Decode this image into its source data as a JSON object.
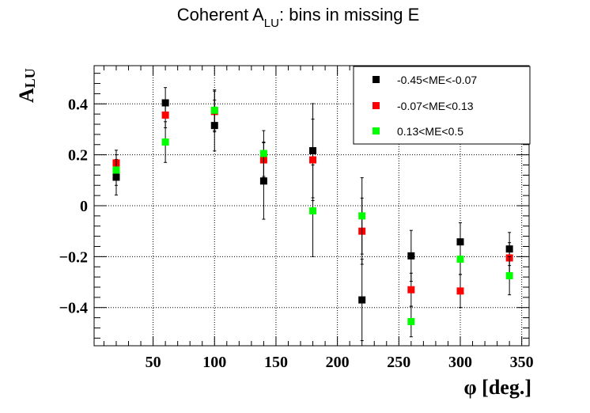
{
  "chart_data": {
    "type": "scatter",
    "title_main": "Coherent A",
    "title_sub": "LU",
    "title_rest": ": bins in missing E",
    "xlabel": "φ [deg.]",
    "ylabel_main": "A",
    "ylabel_sub": "LU",
    "xlim": [
      2,
      356
    ],
    "ylim": [
      -0.55,
      0.55
    ],
    "x_ticks": [
      50,
      100,
      150,
      200,
      250,
      300,
      350
    ],
    "y_ticks": [
      0.4,
      0.2,
      0,
      -0.2,
      -0.4
    ],
    "y_tick_labels": [
      "0.4",
      "0.2",
      "0",
      "−0.2",
      "−0.4"
    ],
    "grid": true,
    "legend_position": "top-right",
    "series": [
      {
        "name": "-0.45<ME<-0.07",
        "color": "#000000",
        "x": [
          20,
          60,
          100,
          140,
          180,
          220,
          260,
          300,
          340
        ],
        "y": [
          0.112,
          0.404,
          0.315,
          0.097,
          0.216,
          -0.37,
          -0.197,
          -0.142,
          -0.17
        ],
        "err": [
          0.07,
          0.06,
          0.1,
          0.15,
          0.185,
          0.16,
          0.1,
          0.075,
          0.065
        ]
      },
      {
        "name": "-0.07<ME<0.13",
        "color": "#ff0000",
        "x": [
          20,
          60,
          100,
          140,
          180,
          220,
          260,
          300,
          340
        ],
        "y": [
          0.168,
          0.356,
          0.37,
          0.18,
          0.18,
          -0.1,
          -0.33,
          -0.335,
          -0.205
        ],
        "err": [
          0.05,
          0.05,
          0.08,
          0.07,
          0.16,
          0.13,
          0.065,
          0.065,
          0.06
        ]
      },
      {
        "name": "0.13<ME<0.5",
        "color": "#00ff00",
        "x": [
          20,
          60,
          100,
          140,
          180,
          220,
          260,
          300,
          340
        ],
        "y": [
          0.14,
          0.25,
          0.375,
          0.205,
          -0.02,
          -0.04,
          -0.455,
          -0.21,
          -0.275
        ],
        "err": [
          0.06,
          0.08,
          0.08,
          0.09,
          0.18,
          0.15,
          0.06,
          0.06,
          0.075
        ]
      }
    ]
  }
}
